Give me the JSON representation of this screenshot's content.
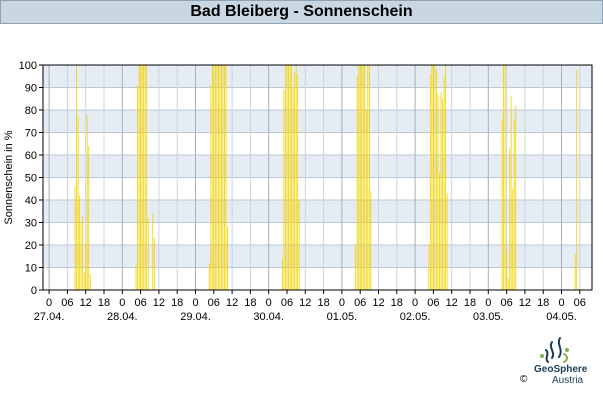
{
  "header": {
    "title": "Bad Bleiberg - Sonnenschein"
  },
  "chart_data": {
    "type": "bar",
    "title": "Bad Bleiberg - Sonnenschein",
    "ylabel": "Sonnenschein in %",
    "xlabel": "",
    "ylim": [
      0,
      100
    ],
    "yticks": [
      0,
      10,
      20,
      30,
      40,
      50,
      60,
      70,
      80,
      90,
      100
    ],
    "x_hour_ticks": [
      "0",
      "06",
      "12",
      "18",
      "0",
      "06",
      "12",
      "18",
      "0",
      "06",
      "12",
      "18",
      "0",
      "06",
      "12",
      "18",
      "0",
      "06",
      "12",
      "18",
      "0",
      "06",
      "12",
      "18",
      "0",
      "06",
      "12",
      "18",
      "0",
      "06"
    ],
    "date_labels": [
      "27.04.",
      "28.04.",
      "29.04.",
      "30.04.",
      "01.05.",
      "02.05.",
      "03.05.",
      "04.05."
    ],
    "x_range_hours": [
      -2,
      178
    ],
    "bar_color": "#f5d300",
    "grid": true,
    "series": [
      {
        "values": [
          [
            8.5,
            46
          ],
          [
            9,
            100
          ],
          [
            9.5,
            77
          ],
          [
            10,
            42
          ],
          [
            10.5,
            30
          ],
          [
            11,
            33
          ],
          [
            11.5,
            8
          ],
          [
            12,
            21
          ],
          [
            12.5,
            78
          ],
          [
            13,
            64
          ],
          [
            13.5,
            7
          ],
          [
            28.5,
            11
          ],
          [
            29,
            91
          ],
          [
            29.5,
            100
          ],
          [
            30,
            100
          ],
          [
            30.5,
            100
          ],
          [
            31,
            100
          ],
          [
            31.5,
            100
          ],
          [
            32,
            100
          ],
          [
            32.5,
            32
          ],
          [
            34,
            34
          ],
          [
            34.5,
            23
          ],
          [
            52.5,
            12
          ],
          [
            53,
            91
          ],
          [
            53.5,
            100
          ],
          [
            54,
            100
          ],
          [
            54.5,
            100
          ],
          [
            55,
            100
          ],
          [
            55.5,
            100
          ],
          [
            56,
            100
          ],
          [
            56.5,
            100
          ],
          [
            57,
            100
          ],
          [
            57.5,
            100
          ],
          [
            58,
            100
          ],
          [
            58.5,
            28
          ],
          [
            76.5,
            14
          ],
          [
            77,
            89
          ],
          [
            77.5,
            100
          ],
          [
            78,
            100
          ],
          [
            78.5,
            100
          ],
          [
            79,
            100
          ],
          [
            79.5,
            100
          ],
          [
            80,
            90
          ],
          [
            80.5,
            97
          ],
          [
            81,
            100
          ],
          [
            81.5,
            96
          ],
          [
            82,
            40
          ],
          [
            100.5,
            20
          ],
          [
            101,
            95
          ],
          [
            101.5,
            100
          ],
          [
            102,
            100
          ],
          [
            102.5,
            100
          ],
          [
            103,
            100
          ],
          [
            103.5,
            100
          ],
          [
            104,
            80
          ],
          [
            104.5,
            100
          ],
          [
            105,
            100
          ],
          [
            105.5,
            44
          ],
          [
            124.5,
            20
          ],
          [
            125,
            96
          ],
          [
            125.5,
            100
          ],
          [
            126,
            100
          ],
          [
            126.5,
            100
          ],
          [
            127,
            98
          ],
          [
            127.5,
            87
          ],
          [
            128,
            52
          ],
          [
            128.5,
            88
          ],
          [
            129,
            85
          ],
          [
            129.5,
            95
          ],
          [
            130,
            100
          ],
          [
            130.5,
            43
          ],
          [
            148.5,
            76
          ],
          [
            149,
            100
          ],
          [
            149.5,
            100
          ],
          [
            150,
            17
          ],
          [
            150.5,
            5
          ],
          [
            151,
            63
          ],
          [
            151.5,
            86
          ],
          [
            152,
            45
          ],
          [
            152.5,
            76
          ],
          [
            153,
            82
          ],
          [
            172.5,
            16
          ],
          [
            173,
            98
          ]
        ]
      }
    ]
  },
  "footer": {
    "logo_name": "GeoSphere",
    "logo_sub": "Austria",
    "copyright": "©"
  }
}
